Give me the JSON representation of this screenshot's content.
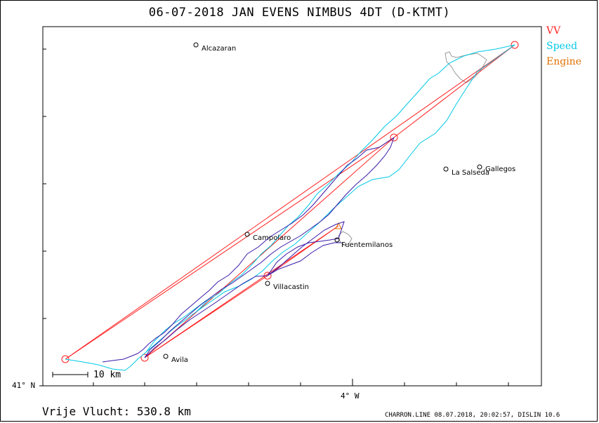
{
  "title": "06-07-2018    JAN EVENS    NIMBUS 4DT (D-KTMT)",
  "legend": {
    "vv": "VV",
    "speed": "Speed",
    "engine": "Engine"
  },
  "colors": {
    "vv": "#ff2020",
    "speed": "#00c8e6",
    "engine": "#e07000",
    "track": "#3a1aa8",
    "terrain": "#9a9a9a"
  },
  "axes": {
    "lat_label": "41° N",
    "lon_label": "4° W"
  },
  "scale_bar": {
    "label": "10 km"
  },
  "places": [
    {
      "name": "Alcazaran"
    },
    {
      "name": "La Salseda"
    },
    {
      "name": "Gallegos"
    },
    {
      "name": "Campolaro"
    },
    {
      "name": "Fuentemilanos"
    },
    {
      "name": "Villacastin"
    },
    {
      "name": "Avila"
    }
  ],
  "footer": {
    "free_flight": "Vrije Vlucht:  530.8 km",
    "credits": "CHARRON.LINE 08.07.2018, 20:02:57, DISLIN 10.6"
  }
}
